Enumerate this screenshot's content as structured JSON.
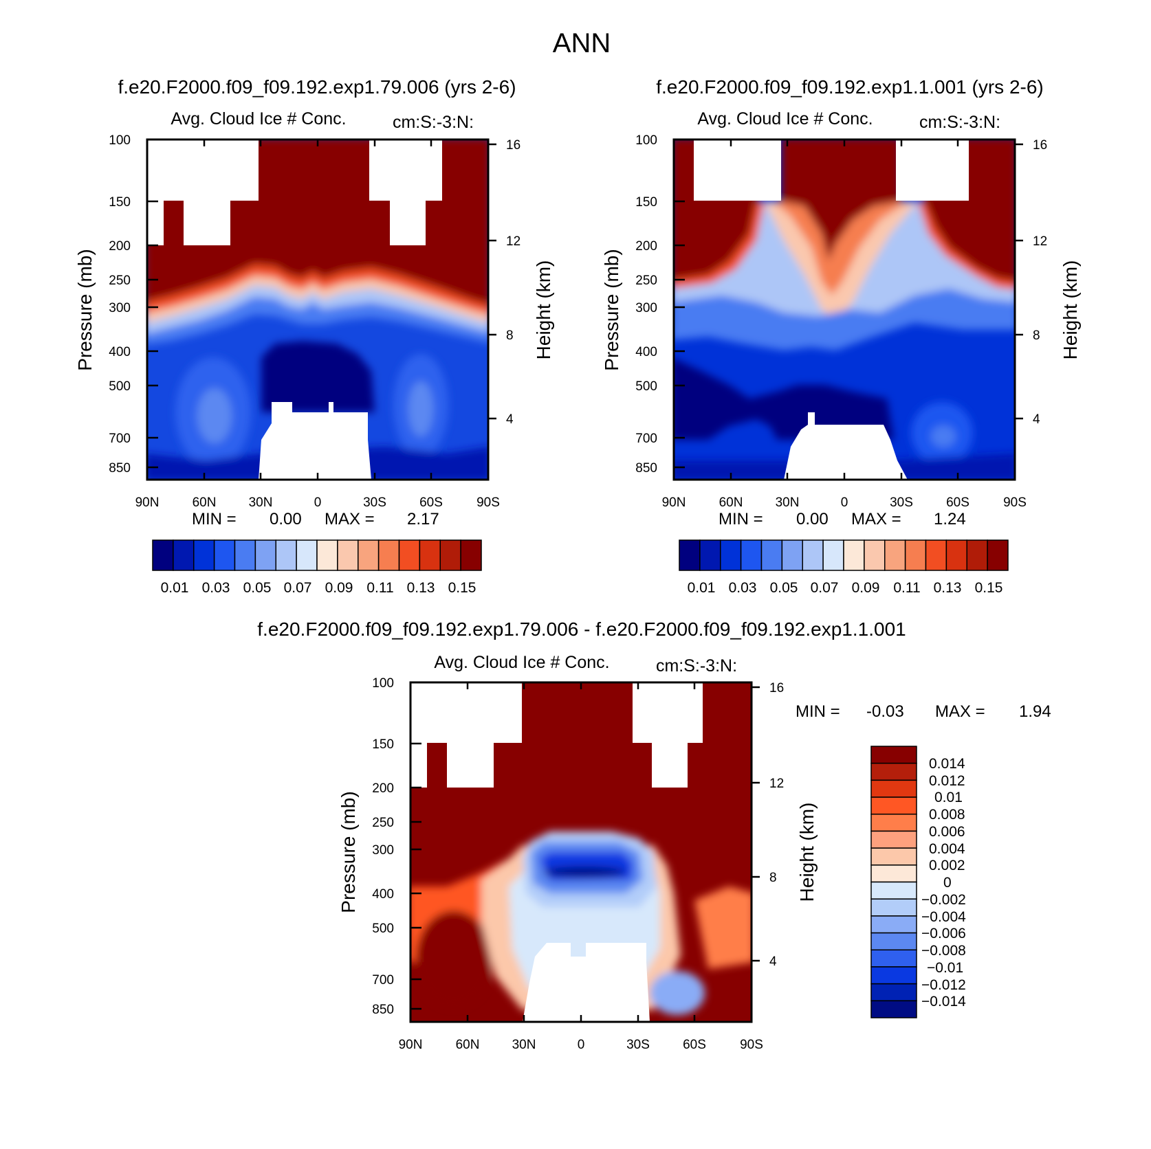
{
  "page": {
    "title": "ANN"
  },
  "panels": [
    {
      "case_title": "f.e20.F2000.f09_f09.192.exp1.79.006 (yrs 2-6)",
      "var_title": "Avg. Cloud Ice # Conc.",
      "units": "cm:S:-3:N:",
      "ylabel": "Pressure (mb)",
      "y2label": "Height (km)",
      "min_label": "MIN =",
      "min_value": "0.00",
      "max_label": "MAX =",
      "max_value": "2.17"
    },
    {
      "case_title": "f.e20.F2000.f09_f09.192.exp1.1.001 (yrs 2-6)",
      "var_title": "Avg. Cloud Ice # Conc.",
      "units": "cm:S:-3:N:",
      "ylabel": "Pressure (mb)",
      "y2label": "Height (km)",
      "min_label": "MIN =",
      "min_value": "0.00",
      "max_label": "MAX =",
      "max_value": "1.24"
    },
    {
      "case_title": "f.e20.F2000.f09_f09.192.exp1.79.006 - f.e20.F2000.f09_f09.192.exp1.1.001",
      "var_title": "Avg. Cloud Ice # Conc.",
      "units": "cm:S:-3:N:",
      "ylabel": "Pressure (mb)",
      "y2label": "Height (km)",
      "min_label": "MIN =",
      "min_value": "-0.03",
      "max_label": "MAX =",
      "max_value": "1.94"
    }
  ],
  "chart_data": [
    {
      "type": "heatmap",
      "title": "Avg. Cloud Ice # Conc.",
      "xlabel": "",
      "ylabel": "Pressure (mb)",
      "y2label": "Height (km)",
      "x_ticklabels": [
        "90N",
        "60N",
        "30N",
        "0",
        "30S",
        "60S",
        "90S"
      ],
      "y_ticklabels": [
        "100",
        "150",
        "200",
        "250",
        "300",
        "400",
        "500",
        "700",
        "850"
      ],
      "y2_ticklabels": [
        "16",
        "12",
        "8",
        "4"
      ],
      "y_scale": "log",
      "ylim": [
        925,
        100
      ],
      "colorbar_labels": [
        "0.01",
        "0.03",
        "0.05",
        "0.07",
        "0.09",
        "0.11",
        "0.13",
        "0.15"
      ],
      "min": 0.0,
      "max": 2.17
    },
    {
      "type": "heatmap",
      "title": "Avg. Cloud Ice # Conc.",
      "xlabel": "",
      "ylabel": "Pressure (mb)",
      "y2label": "Height (km)",
      "x_ticklabels": [
        "90N",
        "60N",
        "30N",
        "0",
        "30S",
        "60S",
        "90S"
      ],
      "y_ticklabels": [
        "100",
        "150",
        "200",
        "250",
        "300",
        "400",
        "500",
        "700",
        "850"
      ],
      "y2_ticklabels": [
        "16",
        "12",
        "8",
        "4"
      ],
      "y_scale": "log",
      "ylim": [
        925,
        100
      ],
      "colorbar_labels": [
        "0.01",
        "0.03",
        "0.05",
        "0.07",
        "0.09",
        "0.11",
        "0.13",
        "0.15"
      ],
      "min": 0.0,
      "max": 1.24
    },
    {
      "type": "heatmap",
      "title": "Avg. Cloud Ice # Conc.",
      "xlabel": "",
      "ylabel": "Pressure (mb)",
      "y2label": "Height (km)",
      "x_ticklabels": [
        "90N",
        "60N",
        "30N",
        "0",
        "30S",
        "60S",
        "90S"
      ],
      "y_ticklabels": [
        "100",
        "150",
        "200",
        "250",
        "300",
        "400",
        "500",
        "700",
        "850"
      ],
      "y2_ticklabels": [
        "16",
        "12",
        "8",
        "4"
      ],
      "y_scale": "log",
      "ylim": [
        925,
        100
      ],
      "colorbar_labels": [
        "0.014",
        "0.012",
        "0.01",
        "0.008",
        "0.006",
        "0.004",
        "0.002",
        "0",
        "−0.002",
        "−0.004",
        "−0.006",
        "−0.008",
        "−0.01",
        "−0.012",
        "−0.014"
      ],
      "min": -0.03,
      "max": 1.94
    }
  ],
  "colors": {
    "abs_scale": [
      "#00007f",
      "#0018b0",
      "#0032d8",
      "#1e56f0",
      "#4a7cf2",
      "#7ea2f3",
      "#adc6f7",
      "#d7e7fb",
      "#fce8d8",
      "#fac8ae",
      "#f8a47e",
      "#f67e50",
      "#f24e22",
      "#d83210",
      "#b01c08",
      "#870000"
    ],
    "diff_scale": [
      "#870000",
      "#b41f0b",
      "#e13811",
      "#ff5724",
      "#ff7e4a",
      "#fda17e",
      "#fcc8aa",
      "#fde8d8",
      "#d7e8fb",
      "#b2cdf9",
      "#8aacf6",
      "#5c88f1",
      "#2f60ee",
      "#0a39e1",
      "#0022b4",
      "#000c84"
    ]
  }
}
